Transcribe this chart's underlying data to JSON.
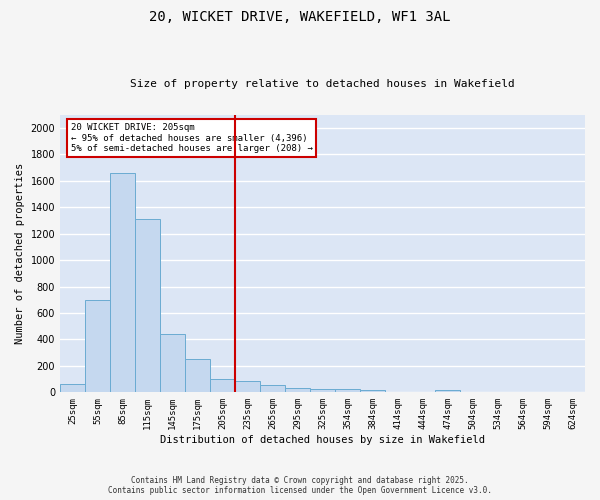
{
  "title": "20, WICKET DRIVE, WAKEFIELD, WF1 3AL",
  "subtitle": "Size of property relative to detached houses in Wakefield",
  "xlabel": "Distribution of detached houses by size in Wakefield",
  "ylabel": "Number of detached properties",
  "categories": [
    "25sqm",
    "55sqm",
    "85sqm",
    "115sqm",
    "145sqm",
    "175sqm",
    "205sqm",
    "235sqm",
    "265sqm",
    "295sqm",
    "325sqm",
    "354sqm",
    "384sqm",
    "414sqm",
    "444sqm",
    "474sqm",
    "504sqm",
    "534sqm",
    "564sqm",
    "594sqm",
    "624sqm"
  ],
  "values": [
    65,
    700,
    1660,
    1310,
    445,
    255,
    100,
    85,
    55,
    35,
    25,
    25,
    15,
    0,
    0,
    15,
    0,
    0,
    0,
    0,
    0
  ],
  "bar_color": "#c5d8ef",
  "bar_edge_color": "#6aabd2",
  "red_line_index": 6,
  "annotation_text": "20 WICKET DRIVE: 205sqm\n← 95% of detached houses are smaller (4,396)\n5% of semi-detached houses are larger (208) →",
  "annotation_box_color": "#ffffff",
  "annotation_box_edge_color": "#cc0000",
  "red_line_color": "#cc0000",
  "ylim": [
    0,
    2100
  ],
  "yticks": [
    0,
    200,
    400,
    600,
    800,
    1000,
    1200,
    1400,
    1600,
    1800,
    2000
  ],
  "background_color": "#dce6f5",
  "grid_color": "#ffffff",
  "fig_background": "#f5f5f5",
  "footer_line1": "Contains HM Land Registry data © Crown copyright and database right 2025.",
  "footer_line2": "Contains public sector information licensed under the Open Government Licence v3.0."
}
